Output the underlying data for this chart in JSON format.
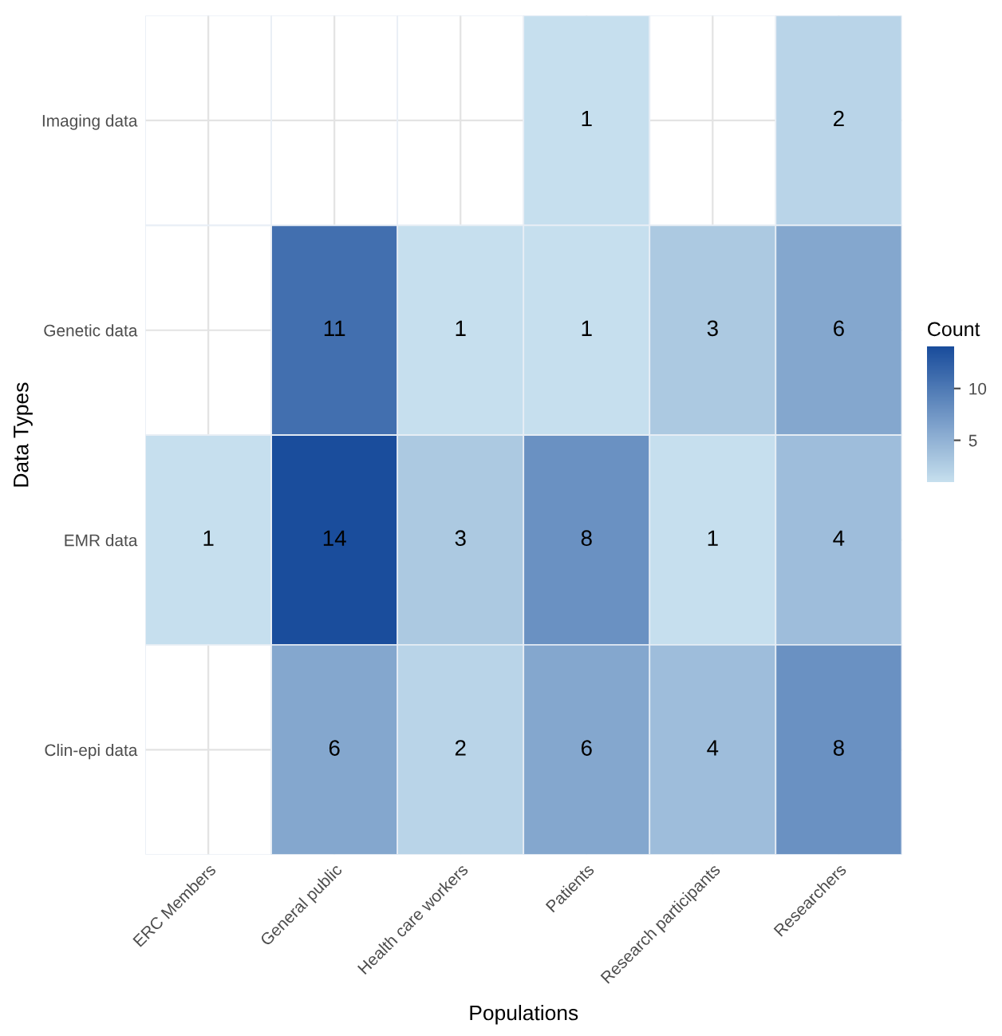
{
  "chart_data": {
    "type": "heatmap",
    "xlabel": "Populations",
    "ylabel": "Data Types",
    "clabel": "Count",
    "categories": [
      "ERC Members",
      "General public",
      "Health care workers",
      "Patients",
      "Research participants",
      "Researchers"
    ],
    "y_categories": [
      "Imaging data",
      "Genetic data",
      "EMR data",
      "Clin-epi data"
    ],
    "cells": [
      [
        null,
        null,
        null,
        1,
        null,
        2
      ],
      [
        null,
        11,
        1,
        1,
        3,
        6
      ],
      [
        1,
        14,
        3,
        8,
        1,
        4
      ],
      [
        null,
        6,
        2,
        6,
        4,
        8
      ]
    ],
    "clim": [
      1,
      14
    ],
    "cticks": [
      5,
      10
    ],
    "data_labels": true,
    "grid": true
  }
}
